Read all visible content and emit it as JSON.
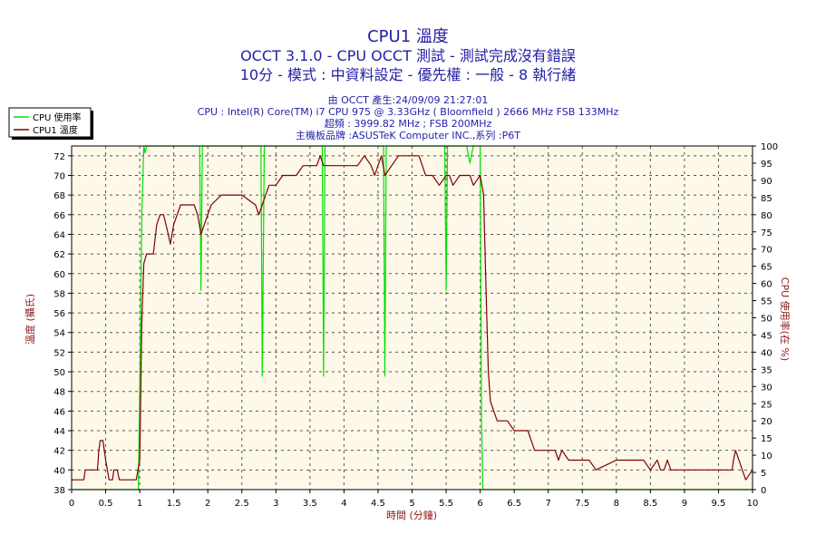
{
  "title_lines": [
    "CPU1 溫度",
    "OCCT 3.1.0 - CPU OCCT 測試 - 測試完成沒有錯誤",
    "10分 - 模式 : 中資料設定 - 優先權 : 一般 - 8 執行緒"
  ],
  "info_lines": [
    "由 OCCT 產生:24/09/09 21:27:01",
    "CPU : Intel(R) Core(TM) i7 CPU 975 @ 3.33GHz ( Bloomfield ) 2666 MHz FSB 133MHz",
    "超頻 : 3999.82 MHz ; FSB 200MHz",
    "主機板品牌 :ASUSTeK Computer INC.,系列 :P6T"
  ],
  "colors": {
    "title": "#1f1fa8",
    "usage_series": "#00e000",
    "temp_series": "#800000",
    "plot_background": "#fdf8e8"
  },
  "chart_data": {
    "type": "line",
    "xlabel": "時間 (分鐘)",
    "ylabel_left": "溫度 (攝氏)",
    "ylabel_right": "CPU 使用率(在 %)",
    "xlim": [
      0,
      10
    ],
    "ylim_left": [
      38,
      73
    ],
    "ylim_right": [
      0,
      100
    ],
    "x_ticks": [
      0,
      0.5,
      1,
      1.5,
      2,
      2.5,
      3,
      3.5,
      4,
      4.5,
      5,
      5.5,
      6,
      6.5,
      7,
      7.5,
      8,
      8.5,
      9,
      9.5,
      10
    ],
    "y_ticks_left": [
      38,
      40,
      42,
      44,
      46,
      48,
      50,
      52,
      54,
      56,
      58,
      60,
      62,
      64,
      66,
      68,
      70,
      72
    ],
    "y_ticks_right": [
      0,
      5,
      10,
      15,
      20,
      25,
      30,
      35,
      40,
      45,
      50,
      55,
      60,
      65,
      70,
      75,
      80,
      85,
      90,
      95,
      100
    ],
    "grid": true,
    "legend_position": "top-left",
    "series": [
      {
        "name": "CPU 使用率",
        "axis": "right",
        "x": [
          0,
          0.98,
          1.0,
          1.03,
          1.06,
          1.08,
          1.1,
          1.5,
          1.88,
          1.9,
          1.92,
          1.95,
          2.0,
          2.78,
          2.8,
          2.83,
          2.86,
          2.9,
          3.68,
          3.7,
          3.72,
          3.75,
          4.0,
          4.5,
          4.58,
          4.6,
          4.62,
          4.65,
          5.0,
          5.48,
          5.5,
          5.52,
          5.55,
          5.8,
          5.85,
          5.9,
          6.0,
          6.02,
          6.04,
          10
        ],
        "y": [
          0,
          0,
          30,
          80,
          100,
          98,
          100,
          100,
          100,
          58,
          100,
          100,
          100,
          100,
          33,
          100,
          100,
          100,
          100,
          33,
          100,
          100,
          100,
          100,
          100,
          33,
          100,
          100,
          100,
          100,
          58,
          100,
          100,
          100,
          95,
          100,
          100,
          20,
          0,
          0
        ]
      },
      {
        "name": "CPU1 溫度",
        "axis": "left",
        "x": [
          0,
          0.18,
          0.2,
          0.38,
          0.4,
          0.42,
          0.46,
          0.5,
          0.55,
          0.6,
          0.62,
          0.67,
          0.7,
          0.95,
          1.0,
          1.03,
          1.06,
          1.1,
          1.2,
          1.25,
          1.3,
          1.35,
          1.42,
          1.45,
          1.5,
          1.55,
          1.6,
          1.8,
          1.85,
          1.9,
          1.95,
          2.0,
          2.05,
          2.2,
          2.5,
          2.7,
          2.75,
          2.8,
          2.85,
          2.9,
          3.0,
          3.1,
          3.3,
          3.4,
          3.5,
          3.6,
          3.65,
          3.7,
          3.8,
          3.9,
          4.0,
          4.2,
          4.3,
          4.4,
          4.45,
          4.5,
          4.55,
          4.6,
          4.7,
          4.8,
          5.0,
          5.1,
          5.15,
          5.2,
          5.3,
          5.4,
          5.5,
          5.55,
          5.6,
          5.7,
          5.75,
          5.85,
          5.9,
          6.0,
          6.05,
          6.08,
          6.12,
          6.15,
          6.2,
          6.25,
          6.3,
          6.4,
          6.5,
          6.6,
          6.7,
          6.75,
          6.8,
          6.9,
          7.0,
          7.1,
          7.15,
          7.2,
          7.3,
          7.4,
          7.5,
          7.6,
          7.7,
          8.0,
          8.2,
          8.4,
          8.5,
          8.6,
          8.65,
          8.7,
          8.75,
          8.8,
          9.0,
          9.3,
          9.5,
          9.7,
          9.72,
          9.75,
          9.8,
          9.85,
          9.9,
          10
        ],
        "y": [
          39,
          39,
          40,
          40,
          42,
          43,
          43,
          41,
          39,
          39,
          40,
          40,
          39,
          39,
          41,
          55,
          61,
          62,
          62,
          65,
          66,
          66,
          64,
          63,
          65,
          66,
          67,
          67,
          66,
          64,
          65,
          66,
          67,
          68,
          68,
          67,
          66,
          67,
          68,
          69,
          69,
          70,
          70,
          71,
          71,
          71,
          72,
          71,
          71,
          71,
          71,
          71,
          72,
          71,
          70,
          71,
          72,
          70,
          71,
          72,
          72,
          72,
          71,
          70,
          70,
          69,
          70,
          70,
          69,
          70,
          70,
          70,
          69,
          70,
          68,
          60,
          50,
          47,
          46,
          45,
          45,
          45,
          44,
          44,
          44,
          43,
          42,
          42,
          42,
          42,
          41,
          42,
          41,
          41,
          41,
          41,
          40,
          41,
          41,
          41,
          40,
          41,
          40,
          40,
          41,
          40,
          40,
          40,
          40,
          40,
          41,
          42,
          41,
          40,
          39,
          40
        ]
      }
    ]
  }
}
